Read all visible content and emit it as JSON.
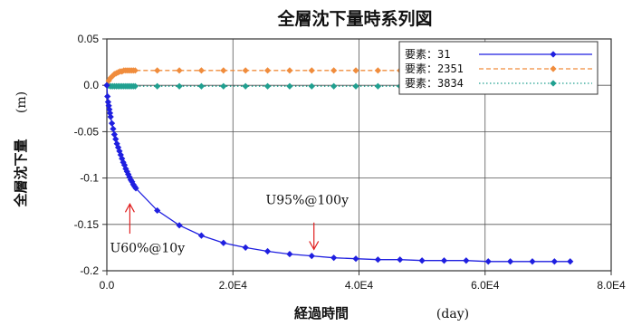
{
  "chart_data": {
    "type": "line",
    "title": "全層沈下量時系列図",
    "xlabel": "経過時間",
    "xunit": "(day)",
    "ylabel": "全層沈下量",
    "yunit": "(m)",
    "xlim": [
      0,
      80000
    ],
    "ylim": [
      -0.2,
      0.05
    ],
    "x_ticks": [
      0,
      20000,
      40000,
      60000,
      80000
    ],
    "x_tick_labels": [
      "0.0",
      "2.0E4",
      "4.0E4",
      "6.0E4",
      "8.0E4"
    ],
    "y_ticks": [
      0.05,
      0,
      -0.05,
      -0.1,
      -0.15,
      -0.2
    ],
    "y_tick_labels": [
      "0.05",
      "0.0",
      "-0.05",
      "-0.1",
      "-0.15",
      "-0.2"
    ],
    "grid": true,
    "legend_position": "top-right",
    "series": [
      {
        "name": "要素：31",
        "color": "#1f1fe0",
        "line_style": "solid",
        "marker": "diamond",
        "x": [
          0,
          100,
          200,
          300,
          400,
          500,
          600,
          800,
          1000,
          1200,
          1400,
          1600,
          1800,
          2000,
          2200,
          2400,
          2600,
          2800,
          3000,
          3200,
          3400,
          3600,
          3800,
          4000,
          4200,
          4400,
          4600,
          8000,
          11500,
          15000,
          18500,
          22000,
          25500,
          29000,
          32500,
          36000,
          39500,
          43000,
          46500,
          50000,
          53500,
          57000,
          60500,
          64000,
          67500,
          71000,
          73500
        ],
        "y": [
          0,
          -0.012,
          -0.018,
          -0.022,
          -0.026,
          -0.03,
          -0.034,
          -0.041,
          -0.047,
          -0.053,
          -0.058,
          -0.063,
          -0.067,
          -0.071,
          -0.075,
          -0.079,
          -0.083,
          -0.086,
          -0.09,
          -0.093,
          -0.096,
          -0.099,
          -0.102,
          -0.104,
          -0.107,
          -0.109,
          -0.111,
          -0.135,
          -0.151,
          -0.162,
          -0.17,
          -0.175,
          -0.179,
          -0.182,
          -0.184,
          -0.186,
          -0.187,
          -0.188,
          -0.188,
          -0.189,
          -0.189,
          -0.189,
          -0.19,
          -0.19,
          -0.19,
          -0.19,
          -0.19
        ]
      },
      {
        "name": "要素：2351",
        "color": "#f08c3c",
        "line_style": "dashed",
        "marker": "diamond",
        "x": [
          0,
          300,
          600,
          900,
          1200,
          1500,
          1800,
          2100,
          2400,
          2700,
          3000,
          3300,
          3600,
          3900,
          4200,
          4500,
          8000,
          11500,
          15000,
          18500,
          22000,
          25500,
          29000,
          32500,
          36000,
          39500,
          43000,
          46500
        ],
        "y": [
          0,
          0.005,
          0.008,
          0.01,
          0.012,
          0.013,
          0.014,
          0.015,
          0.015,
          0.016,
          0.016,
          0.016,
          0.016,
          0.016,
          0.016,
          0.016,
          0.016,
          0.016,
          0.016,
          0.016,
          0.016,
          0.016,
          0.016,
          0.016,
          0.016,
          0.016,
          0.016,
          0.016
        ]
      },
      {
        "name": "要素：3834",
        "color": "#20a090",
        "line_style": "dotted",
        "marker": "diamond",
        "x": [
          0,
          300,
          600,
          900,
          1200,
          1500,
          1800,
          2100,
          2400,
          2700,
          3000,
          3300,
          3600,
          3900,
          4200,
          4500,
          8000,
          11500,
          15000,
          18500,
          22000,
          25500,
          29000,
          32500,
          36000,
          39500,
          43000,
          46500
        ],
        "y": [
          0,
          -0.0005,
          -0.001,
          -0.001,
          -0.001,
          -0.001,
          -0.001,
          -0.001,
          -0.001,
          -0.001,
          -0.001,
          -0.001,
          -0.001,
          -0.001,
          -0.001,
          -0.001,
          -0.001,
          -0.001,
          -0.001,
          -0.001,
          -0.001,
          -0.001,
          -0.001,
          -0.001,
          -0.001,
          -0.001,
          -0.001,
          -0.001
        ]
      }
    ],
    "annotations": [
      {
        "text": "U60%@10y",
        "arrow_x": 3650,
        "arrow_y_from": -0.16,
        "arrow_y_to": -0.128,
        "text_x": 500,
        "text_y": -0.18,
        "color": "#e02020"
      },
      {
        "text": "U95%@100y",
        "arrow_x": 32850,
        "arrow_y_from": -0.148,
        "arrow_y_to": -0.177,
        "text_x": 25200,
        "text_y": -0.128,
        "color": "#e02020"
      }
    ]
  }
}
